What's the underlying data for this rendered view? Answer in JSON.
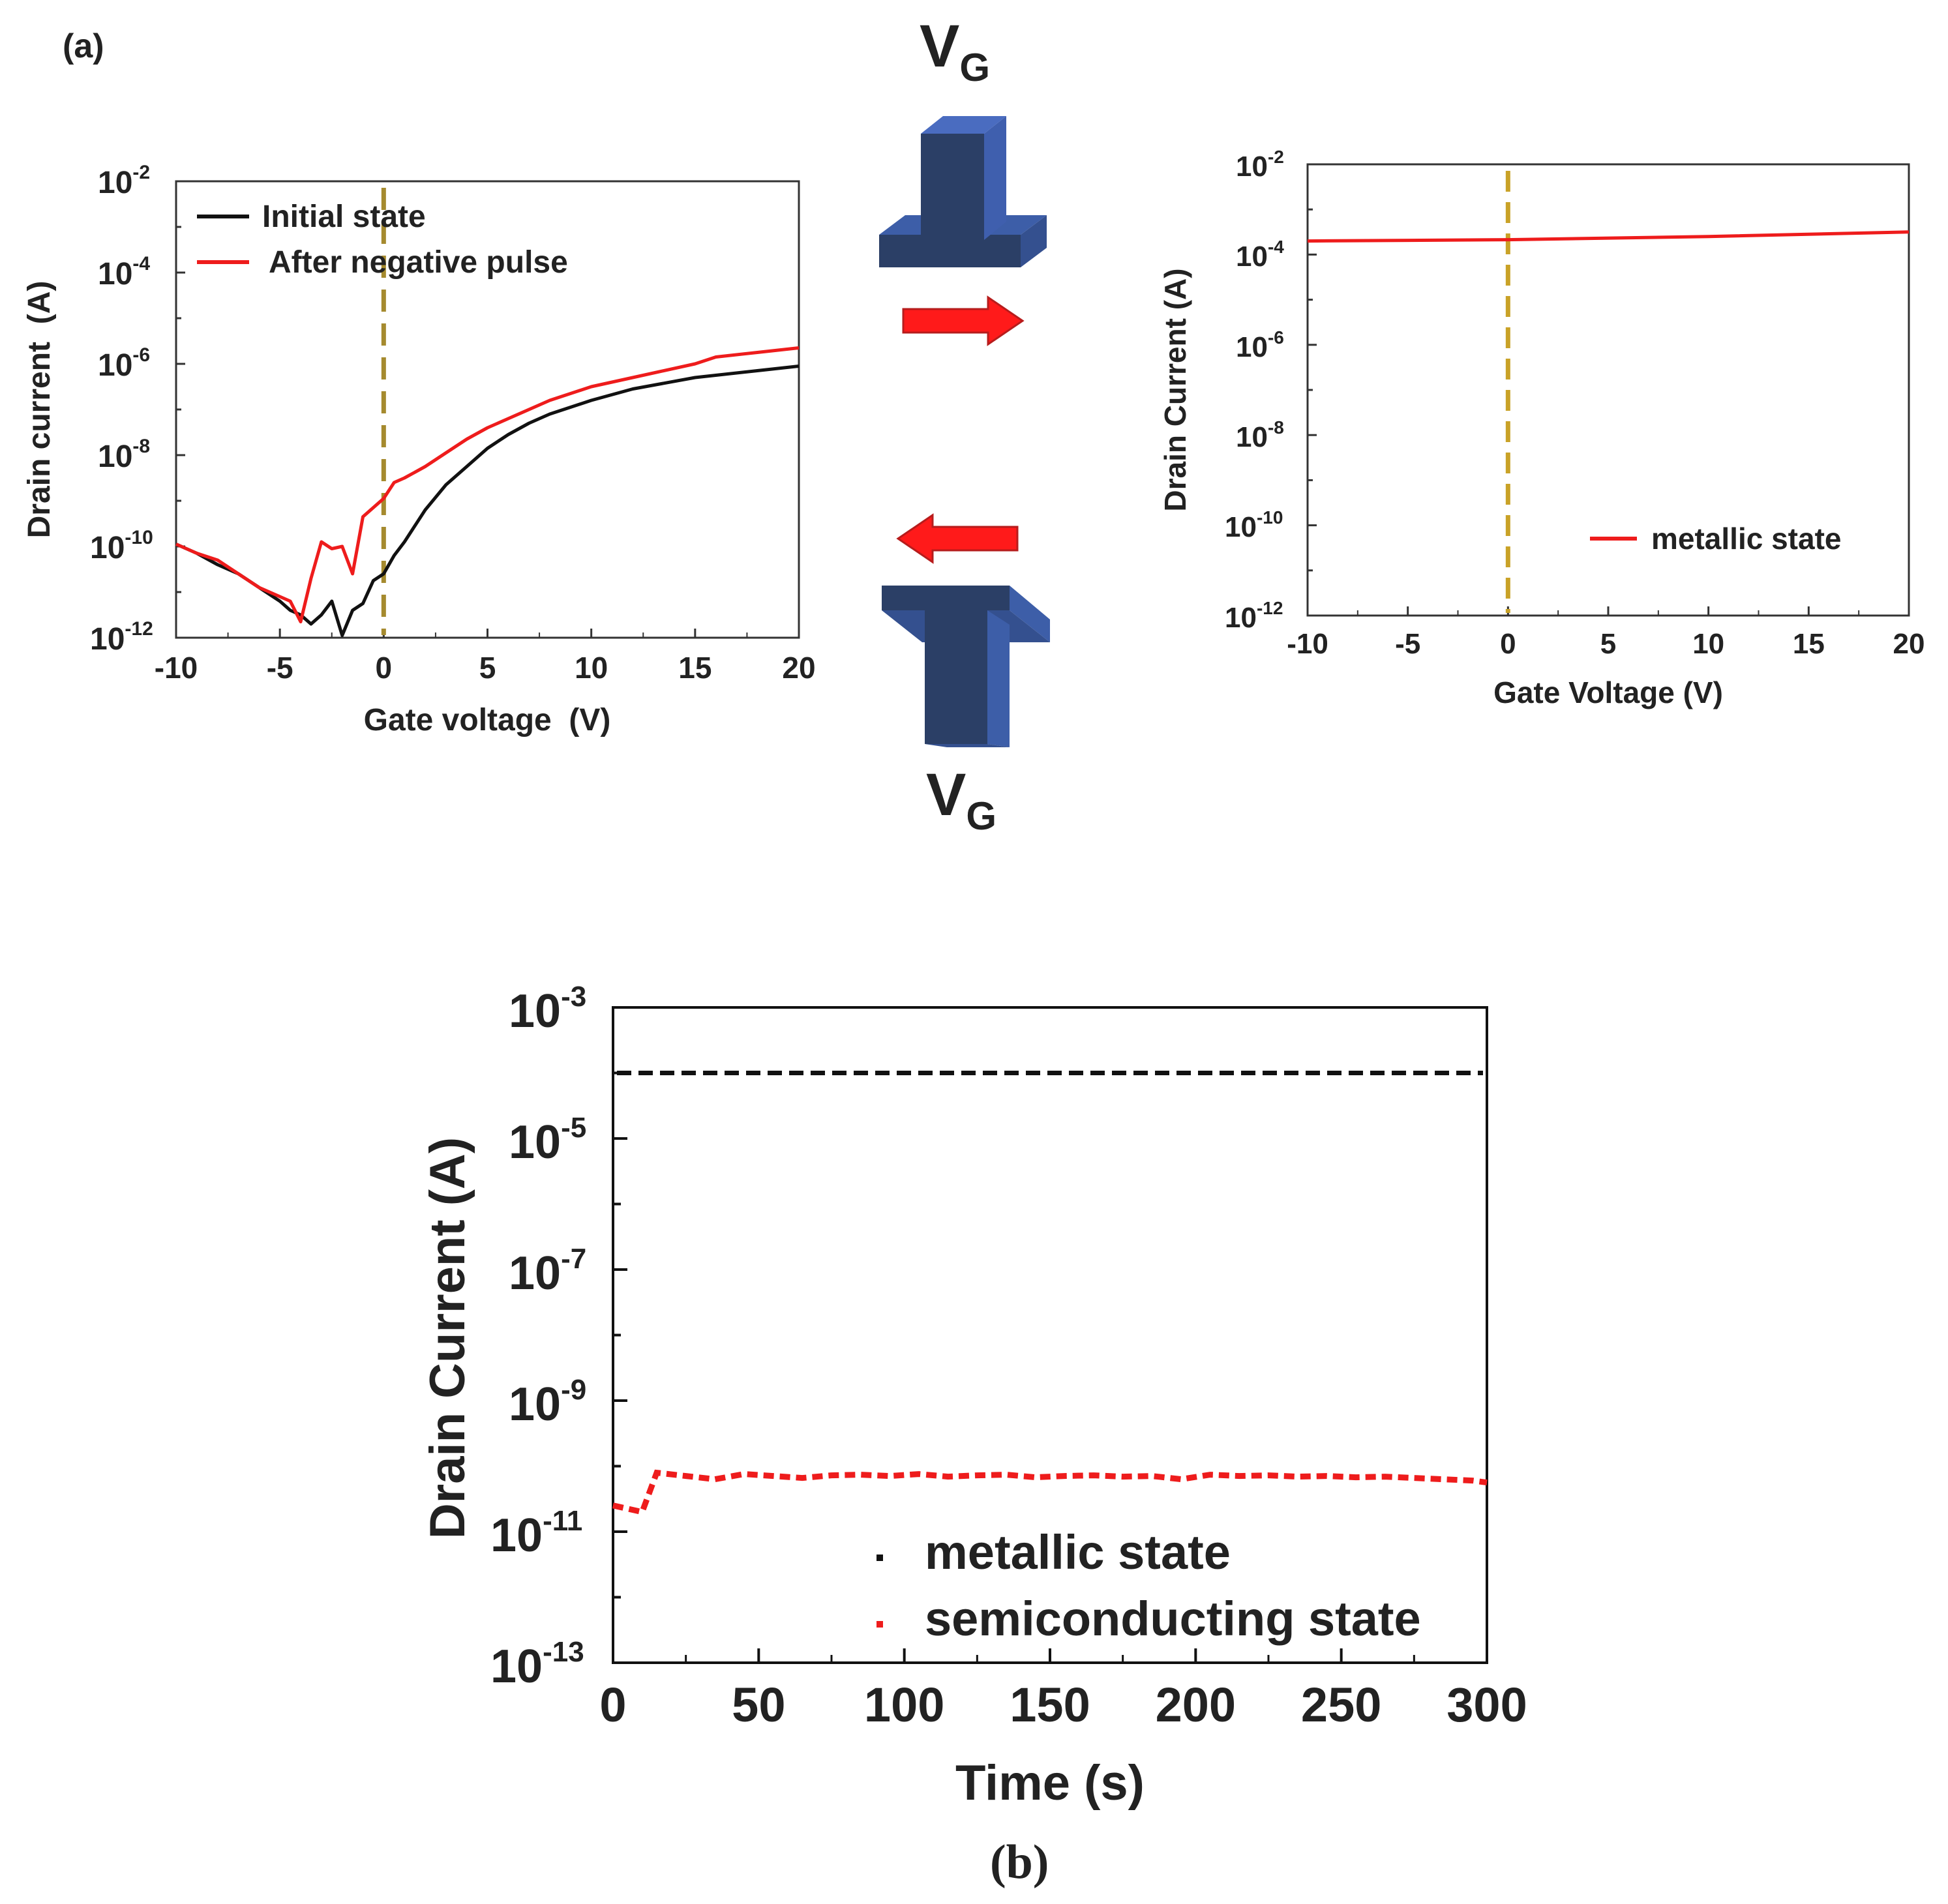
{
  "panel_a_label": "(a)",
  "panel_b_label": "(b)",
  "diagram": {
    "vg_top": "V",
    "vg_top_sub": "G",
    "vg_bottom": "V",
    "vg_bottom_sub": "G",
    "block_color": "#2b3f66",
    "block_light": "#3d5ea8",
    "arrow_color": "#ff1a1a"
  },
  "tick_exp_labels": {
    "a1": [
      "-2",
      "-4",
      "-6",
      "-8",
      "-10",
      "-12"
    ],
    "a2": [
      "-2",
      "-4",
      "-6",
      "-8",
      "-10",
      "-12"
    ],
    "b": [
      "-3",
      "-5",
      "-7",
      "-9",
      "-11",
      "-13"
    ]
  },
  "chart_data": [
    {
      "id": "a1",
      "type": "line",
      "title": "",
      "xlabel": "Gate voltage  (V)",
      "ylabel": "Drain current  (A)",
      "xlim": [
        -10,
        20
      ],
      "ylim_log10": [
        -12,
        -2
      ],
      "yscale": "log",
      "x_ticks": [
        -10,
        -5,
        0,
        5,
        10,
        15,
        20
      ],
      "x_tick_labels": [
        "-10",
        "-5",
        "0",
        "5",
        "10",
        "15",
        "20"
      ],
      "y_ticks_log10": [
        -2,
        -4,
        -6,
        -8,
        -10,
        -12
      ],
      "reference_line": {
        "x": 0,
        "style": "dashed",
        "color": "#a58a2e"
      },
      "legend": [
        "Initial state",
        "After negative pulse"
      ],
      "legend_position": "top-left",
      "series": [
        {
          "name": "Initial state",
          "color": "#111111",
          "x": [
            -10,
            -9,
            -8,
            -7,
            -6,
            -5,
            -4.5,
            -4,
            -3.5,
            -3,
            -2.5,
            -2,
            -1.5,
            -1,
            -0.5,
            0,
            0.5,
            1,
            2,
            3,
            4,
            5,
            6,
            7,
            8,
            10,
            12,
            15,
            18,
            20
          ],
          "log10_y": [
            -9.95,
            -10.15,
            -10.4,
            -10.6,
            -10.9,
            -11.2,
            -11.4,
            -11.5,
            -11.7,
            -11.5,
            -11.2,
            -11.95,
            -11.4,
            -11.25,
            -10.75,
            -10.6,
            -10.2,
            -9.9,
            -9.2,
            -8.65,
            -8.25,
            -7.85,
            -7.55,
            -7.3,
            -7.1,
            -6.8,
            -6.55,
            -6.3,
            -6.15,
            -6.05
          ]
        },
        {
          "name": "After negative pulse",
          "color": "#ee1c1c",
          "x": [
            -10,
            -9,
            -8,
            -7,
            -6,
            -5,
            -4.5,
            -4,
            -3.5,
            -3,
            -2.5,
            -2,
            -1.5,
            -1,
            0,
            0.5,
            1,
            2,
            3,
            4,
            5,
            6,
            8,
            10,
            12,
            15,
            16,
            18,
            20
          ],
          "log10_y": [
            -9.95,
            -10.15,
            -10.3,
            -10.6,
            -10.9,
            -11.1,
            -11.2,
            -11.65,
            -10.7,
            -9.9,
            -10.05,
            -10.0,
            -10.6,
            -9.35,
            -8.95,
            -8.6,
            -8.5,
            -8.25,
            -7.95,
            -7.65,
            -7.4,
            -7.2,
            -6.8,
            -6.5,
            -6.3,
            -6.0,
            -5.85,
            -5.75,
            -5.65
          ]
        }
      ]
    },
    {
      "id": "a2",
      "type": "line",
      "title": "",
      "xlabel": "Gate Voltage (V)",
      "ylabel": "Drain Current (A)",
      "xlim": [
        -10,
        20
      ],
      "ylim_log10": [
        -12,
        -2
      ],
      "yscale": "log",
      "x_ticks": [
        -10,
        -5,
        0,
        5,
        10,
        15,
        20
      ],
      "x_tick_labels": [
        "-10",
        "-5",
        "0",
        "5",
        "10",
        "15",
        "20"
      ],
      "y_ticks_log10": [
        -2,
        -4,
        -6,
        -8,
        -10,
        -12
      ],
      "reference_line": {
        "x": 0,
        "style": "dashed",
        "color": "#c9a227"
      },
      "legend": [
        "metallic state"
      ],
      "legend_position": "bottom-right",
      "series": [
        {
          "name": "metallic state",
          "color": "#ee1c1c",
          "x": [
            -10,
            0,
            10,
            20
          ],
          "log10_y": [
            -3.7,
            -3.67,
            -3.6,
            -3.5
          ]
        }
      ]
    },
    {
      "id": "b",
      "type": "scatter",
      "title": "",
      "xlabel": "Time (s)",
      "ylabel": "Drain Current (A)",
      "xlim": [
        0,
        300
      ],
      "ylim_log10": [
        -13,
        -3
      ],
      "yscale": "log",
      "x_ticks": [
        0,
        50,
        100,
        150,
        200,
        250,
        300
      ],
      "x_tick_labels": [
        "0",
        "50",
        "100",
        "150",
        "200",
        "250",
        "300"
      ],
      "y_ticks_log10": [
        -3,
        -5,
        -7,
        -9,
        -11,
        -13
      ],
      "legend": [
        "metallic state",
        "semiconducting state"
      ],
      "legend_position": "bottom-right",
      "series": [
        {
          "name": "metallic state",
          "color": "#111111",
          "style": "dense-points",
          "x_range": [
            0,
            300
          ],
          "log10_y": -4.0
        },
        {
          "name": "semiconducting state",
          "color": "#ee1c1c",
          "style": "dense-points",
          "x": [
            0,
            5,
            10,
            15,
            25,
            35,
            45,
            55,
            65,
            75,
            85,
            95,
            105,
            115,
            125,
            135,
            145,
            155,
            165,
            175,
            185,
            195,
            205,
            215,
            225,
            235,
            245,
            255,
            265,
            275,
            285,
            295,
            300
          ],
          "log10_y": [
            -10.6,
            -10.65,
            -10.7,
            -10.1,
            -10.15,
            -10.2,
            -10.12,
            -10.15,
            -10.18,
            -10.14,
            -10.13,
            -10.15,
            -10.12,
            -10.16,
            -10.14,
            -10.13,
            -10.17,
            -10.15,
            -10.14,
            -10.16,
            -10.15,
            -10.2,
            -10.13,
            -10.15,
            -10.14,
            -10.16,
            -10.15,
            -10.17,
            -10.16,
            -10.18,
            -10.2,
            -10.22,
            -10.25
          ]
        }
      ]
    }
  ]
}
